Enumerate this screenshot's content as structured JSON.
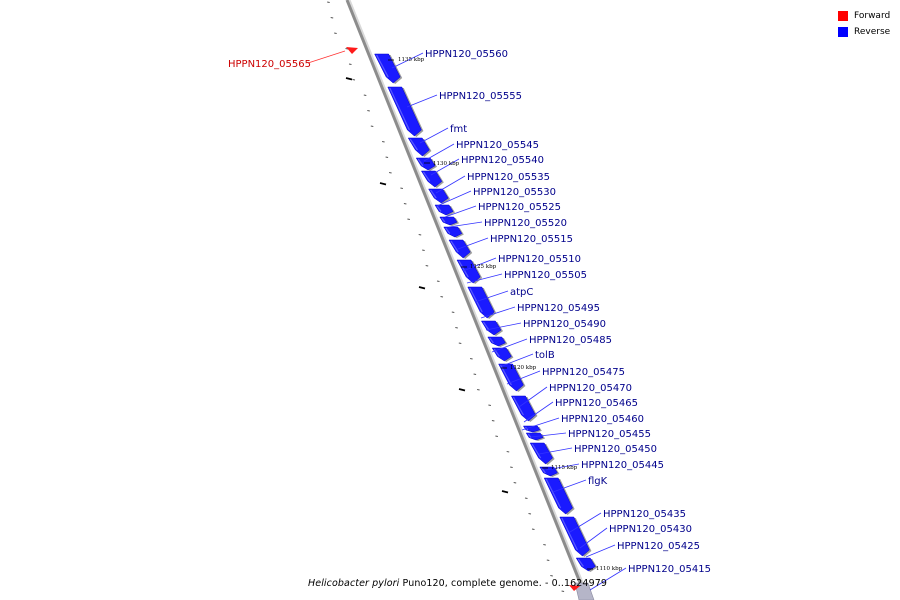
{
  "legend": {
    "forward_label": "Forward",
    "forward_color": "#ff0000",
    "reverse_label": "Reverse",
    "reverse_color": "#0000ff"
  },
  "caption": {
    "organism": "Helicobacter pylori",
    "rest": " Puno120, complete genome. - 0..1624979"
  },
  "colors": {
    "backbone": "#8c8c8c",
    "reverse_fill": "#1a1aff",
    "forward_fill": "#ff1a1a",
    "forward_text": "#cc0000",
    "reverse_text": "#00008b",
    "tick": "#000000"
  },
  "scale_labels": [
    "1135 kbp",
    "1130 kbp",
    "1125 kbp",
    "1120 kbp",
    "1115 kbp",
    "1110 kbp"
  ],
  "genes": [
    {
      "name": "HPPN120_05565",
      "strand": "forward"
    },
    {
      "name": "HPPN120_05560",
      "strand": "reverse"
    },
    {
      "name": "HPPN120_05555",
      "strand": "reverse"
    },
    {
      "name": "fmt",
      "strand": "reverse"
    },
    {
      "name": "HPPN120_05545",
      "strand": "reverse"
    },
    {
      "name": "HPPN120_05540",
      "strand": "reverse"
    },
    {
      "name": "HPPN120_05535",
      "strand": "reverse"
    },
    {
      "name": "HPPN120_05530",
      "strand": "reverse"
    },
    {
      "name": "HPPN120_05525",
      "strand": "reverse"
    },
    {
      "name": "HPPN120_05520",
      "strand": "reverse"
    },
    {
      "name": "HPPN120_05515",
      "strand": "reverse"
    },
    {
      "name": "HPPN120_05510",
      "strand": "reverse"
    },
    {
      "name": "HPPN120_05505",
      "strand": "reverse"
    },
    {
      "name": "atpC",
      "strand": "reverse"
    },
    {
      "name": "HPPN120_05495",
      "strand": "reverse"
    },
    {
      "name": "HPPN120_05490",
      "strand": "reverse"
    },
    {
      "name": "HPPN120_05485",
      "strand": "reverse"
    },
    {
      "name": "tolB",
      "strand": "reverse"
    },
    {
      "name": "HPPN120_05475",
      "strand": "reverse"
    },
    {
      "name": "HPPN120_05470",
      "strand": "reverse"
    },
    {
      "name": "HPPN120_05465",
      "strand": "reverse"
    },
    {
      "name": "HPPN120_05460",
      "strand": "reverse"
    },
    {
      "name": "HPPN120_05455",
      "strand": "reverse"
    },
    {
      "name": "HPPN120_05450",
      "strand": "reverse"
    },
    {
      "name": "HPPN120_05445",
      "strand": "reverse"
    },
    {
      "name": "flgK",
      "strand": "reverse"
    },
    {
      "name": "HPPN120_05435",
      "strand": "reverse"
    },
    {
      "name": "HPPN120_05430",
      "strand": "reverse"
    },
    {
      "name": "HPPN120_05425",
      "strand": "reverse"
    },
    {
      "name": "HPPN120_05415",
      "strand": "reverse"
    }
  ]
}
